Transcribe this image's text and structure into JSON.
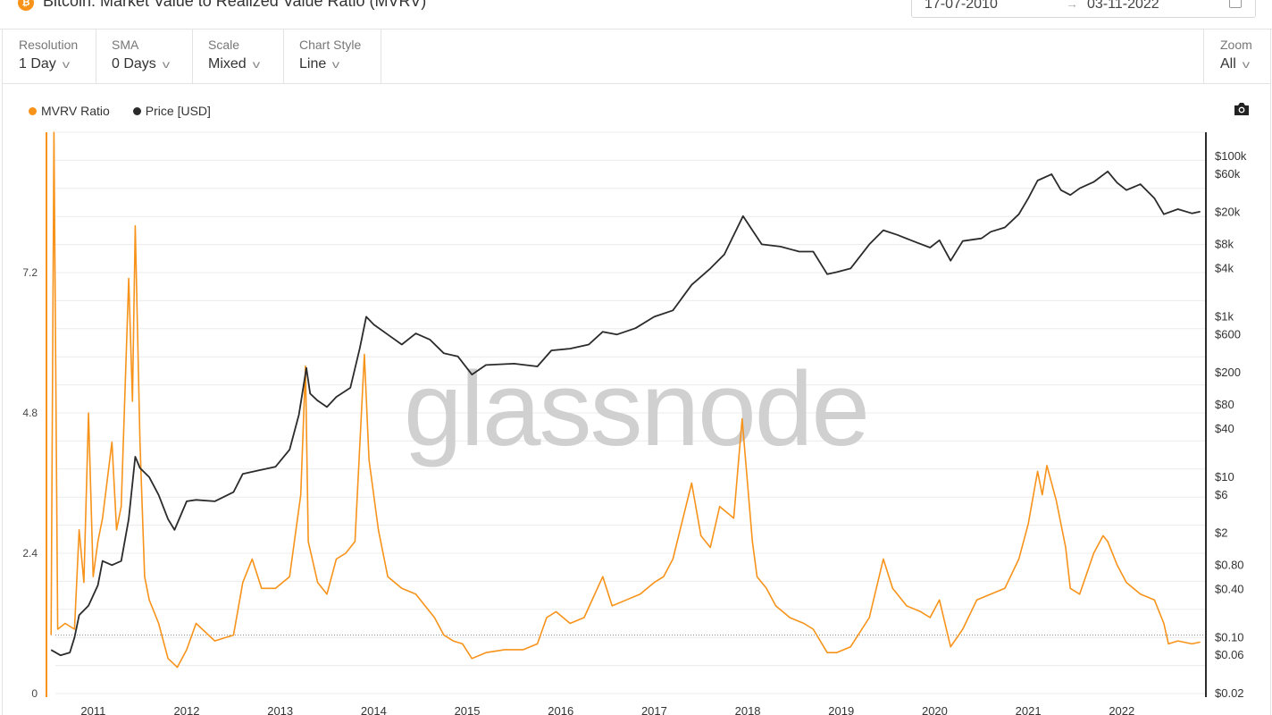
{
  "header": {
    "icon_symbol": "₿",
    "title": "Bitcoin: Market Value to Realized Value Ratio (MVRV)",
    "date_start": "17-07-2010",
    "date_end": "03-11-2022"
  },
  "toolbar": {
    "resolution_label": "Resolution",
    "resolution_value": "1 Day",
    "sma_label": "SMA",
    "sma_value": "0 Days",
    "scale_label": "Scale",
    "scale_value": "Mixed",
    "style_label": "Chart Style",
    "style_value": "Line",
    "zoom_label": "Zoom",
    "zoom_value": "All"
  },
  "legend": {
    "mvrv": "MVRV Ratio",
    "price": "Price [USD]"
  },
  "watermark": "glassnode",
  "colors": {
    "mvrv": "#f7931a",
    "price": "#2b2b2b",
    "grid": "#ececec",
    "watermark": "#d0d0d0"
  },
  "chart_data": {
    "type": "line",
    "x_ticks": [
      "2011",
      "2012",
      "2013",
      "2014",
      "2015",
      "2016",
      "2017",
      "2018",
      "2019",
      "2020",
      "2021",
      "2022"
    ],
    "left_axis": {
      "scale": "linear",
      "ticks": [
        0,
        2.4,
        4.8,
        7.2
      ],
      "range": [
        0,
        9.6
      ]
    },
    "right_axis": {
      "scale": "log",
      "ticks": [
        "$0.02",
        "$0.06",
        "$0.10",
        "$0.40",
        "$0.80",
        "$2",
        "$6",
        "$10",
        "$40",
        "$80",
        "$200",
        "$600",
        "$1k",
        "$4k",
        "$8k",
        "$20k",
        "$60k",
        "$100k"
      ],
      "values": [
        0.02,
        0.06,
        0.1,
        0.4,
        0.8,
        2,
        6,
        10,
        40,
        80,
        200,
        600,
        1000,
        4000,
        8000,
        20000,
        60000,
        100000
      ],
      "range": [
        0.02,
        200000
      ]
    },
    "reference_line": {
      "axis": "left",
      "value": 1
    },
    "series": [
      {
        "name": "MVRV Ratio",
        "axis": "left",
        "points": [
          [
            2010.55,
            1.0
          ],
          [
            2010.58,
            9.6
          ],
          [
            2010.62,
            1.1
          ],
          [
            2010.7,
            1.2
          ],
          [
            2010.8,
            1.1
          ],
          [
            2010.85,
            2.8
          ],
          [
            2010.9,
            1.9
          ],
          [
            2010.95,
            4.8
          ],
          [
            2011.0,
            2.0
          ],
          [
            2011.05,
            2.6
          ],
          [
            2011.1,
            3.0
          ],
          [
            2011.2,
            4.3
          ],
          [
            2011.25,
            2.8
          ],
          [
            2011.3,
            3.2
          ],
          [
            2011.38,
            7.1
          ],
          [
            2011.42,
            5.0
          ],
          [
            2011.45,
            8.0
          ],
          [
            2011.5,
            4.3
          ],
          [
            2011.55,
            2.0
          ],
          [
            2011.6,
            1.6
          ],
          [
            2011.7,
            1.2
          ],
          [
            2011.8,
            0.6
          ],
          [
            2011.9,
            0.45
          ],
          [
            2012.0,
            0.75
          ],
          [
            2012.1,
            1.2
          ],
          [
            2012.3,
            0.9
          ],
          [
            2012.5,
            1.0
          ],
          [
            2012.6,
            1.9
          ],
          [
            2012.7,
            2.3
          ],
          [
            2012.8,
            1.8
          ],
          [
            2012.95,
            1.8
          ],
          [
            2013.1,
            2.0
          ],
          [
            2013.22,
            3.4
          ],
          [
            2013.27,
            5.6
          ],
          [
            2013.3,
            2.6
          ],
          [
            2013.4,
            1.9
          ],
          [
            2013.5,
            1.7
          ],
          [
            2013.6,
            2.3
          ],
          [
            2013.7,
            2.4
          ],
          [
            2013.8,
            2.6
          ],
          [
            2013.9,
            5.8
          ],
          [
            2013.95,
            4.0
          ],
          [
            2014.05,
            2.8
          ],
          [
            2014.15,
            2.0
          ],
          [
            2014.3,
            1.8
          ],
          [
            2014.45,
            1.7
          ],
          [
            2014.55,
            1.5
          ],
          [
            2014.65,
            1.3
          ],
          [
            2014.75,
            1.0
          ],
          [
            2014.85,
            0.9
          ],
          [
            2014.95,
            0.85
          ],
          [
            2015.05,
            0.6
          ],
          [
            2015.2,
            0.7
          ],
          [
            2015.4,
            0.75
          ],
          [
            2015.6,
            0.75
          ],
          [
            2015.75,
            0.85
          ],
          [
            2015.85,
            1.3
          ],
          [
            2015.95,
            1.4
          ],
          [
            2016.1,
            1.2
          ],
          [
            2016.25,
            1.3
          ],
          [
            2016.45,
            2.0
          ],
          [
            2016.55,
            1.5
          ],
          [
            2016.7,
            1.6
          ],
          [
            2016.85,
            1.7
          ],
          [
            2017.0,
            1.9
          ],
          [
            2017.1,
            2.0
          ],
          [
            2017.2,
            2.3
          ],
          [
            2017.4,
            3.6
          ],
          [
            2017.5,
            2.7
          ],
          [
            2017.6,
            2.5
          ],
          [
            2017.7,
            3.2
          ],
          [
            2017.85,
            3.0
          ],
          [
            2017.94,
            4.7
          ],
          [
            2018.05,
            2.6
          ],
          [
            2018.1,
            2.0
          ],
          [
            2018.2,
            1.8
          ],
          [
            2018.3,
            1.5
          ],
          [
            2018.45,
            1.3
          ],
          [
            2018.6,
            1.2
          ],
          [
            2018.7,
            1.1
          ],
          [
            2018.85,
            0.7
          ],
          [
            2018.95,
            0.7
          ],
          [
            2019.1,
            0.8
          ],
          [
            2019.3,
            1.3
          ],
          [
            2019.45,
            2.3
          ],
          [
            2019.55,
            1.8
          ],
          [
            2019.7,
            1.5
          ],
          [
            2019.85,
            1.4
          ],
          [
            2019.95,
            1.3
          ],
          [
            2020.05,
            1.6
          ],
          [
            2020.17,
            0.8
          ],
          [
            2020.3,
            1.1
          ],
          [
            2020.45,
            1.6
          ],
          [
            2020.6,
            1.7
          ],
          [
            2020.75,
            1.8
          ],
          [
            2020.9,
            2.3
          ],
          [
            2021.0,
            2.9
          ],
          [
            2021.1,
            3.8
          ],
          [
            2021.15,
            3.4
          ],
          [
            2021.2,
            3.9
          ],
          [
            2021.3,
            3.3
          ],
          [
            2021.4,
            2.5
          ],
          [
            2021.45,
            1.8
          ],
          [
            2021.55,
            1.7
          ],
          [
            2021.7,
            2.4
          ],
          [
            2021.8,
            2.7
          ],
          [
            2021.85,
            2.6
          ],
          [
            2021.95,
            2.2
          ],
          [
            2022.05,
            1.9
          ],
          [
            2022.2,
            1.7
          ],
          [
            2022.35,
            1.6
          ],
          [
            2022.45,
            1.2
          ],
          [
            2022.5,
            0.85
          ],
          [
            2022.6,
            0.9
          ],
          [
            2022.75,
            0.85
          ],
          [
            2022.84,
            0.88
          ]
        ]
      },
      {
        "name": "Price [USD]",
        "axis": "right",
        "points": [
          [
            2010.55,
            0.07
          ],
          [
            2010.65,
            0.06
          ],
          [
            2010.75,
            0.065
          ],
          [
            2010.8,
            0.1
          ],
          [
            2010.85,
            0.19
          ],
          [
            2010.95,
            0.25
          ],
          [
            2011.05,
            0.45
          ],
          [
            2011.1,
            0.9
          ],
          [
            2011.2,
            0.8
          ],
          [
            2011.3,
            0.9
          ],
          [
            2011.38,
            3
          ],
          [
            2011.45,
            18
          ],
          [
            2011.5,
            13
          ],
          [
            2011.6,
            10
          ],
          [
            2011.7,
            6
          ],
          [
            2011.8,
            3
          ],
          [
            2011.87,
            2.2
          ],
          [
            2012.0,
            5
          ],
          [
            2012.1,
            5.2
          ],
          [
            2012.3,
            5
          ],
          [
            2012.5,
            6.5
          ],
          [
            2012.6,
            11
          ],
          [
            2012.75,
            12
          ],
          [
            2012.95,
            13.5
          ],
          [
            2013.1,
            22
          ],
          [
            2013.2,
            60
          ],
          [
            2013.28,
            230
          ],
          [
            2013.32,
            110
          ],
          [
            2013.4,
            90
          ],
          [
            2013.5,
            75
          ],
          [
            2013.6,
            100
          ],
          [
            2013.75,
            130
          ],
          [
            2013.85,
            400
          ],
          [
            2013.92,
            1000
          ],
          [
            2014.0,
            800
          ],
          [
            2014.15,
            600
          ],
          [
            2014.3,
            450
          ],
          [
            2014.45,
            620
          ],
          [
            2014.6,
            520
          ],
          [
            2014.75,
            350
          ],
          [
            2014.9,
            320
          ],
          [
            2015.05,
            190
          ],
          [
            2015.2,
            250
          ],
          [
            2015.5,
            260
          ],
          [
            2015.75,
            240
          ],
          [
            2015.9,
            380
          ],
          [
            2016.1,
            400
          ],
          [
            2016.3,
            450
          ],
          [
            2016.45,
            650
          ],
          [
            2016.6,
            600
          ],
          [
            2016.8,
            720
          ],
          [
            2017.0,
            1000
          ],
          [
            2017.2,
            1200
          ],
          [
            2017.4,
            2500
          ],
          [
            2017.6,
            4000
          ],
          [
            2017.75,
            6000
          ],
          [
            2017.95,
            18000
          ],
          [
            2018.05,
            12000
          ],
          [
            2018.15,
            8000
          ],
          [
            2018.35,
            7500
          ],
          [
            2018.55,
            6500
          ],
          [
            2018.7,
            6500
          ],
          [
            2018.85,
            3400
          ],
          [
            2018.95,
            3600
          ],
          [
            2019.1,
            4000
          ],
          [
            2019.3,
            8000
          ],
          [
            2019.45,
            12000
          ],
          [
            2019.6,
            10500
          ],
          [
            2019.8,
            8500
          ],
          [
            2019.95,
            7300
          ],
          [
            2020.05,
            9000
          ],
          [
            2020.17,
            5000
          ],
          [
            2020.3,
            8800
          ],
          [
            2020.5,
            9500
          ],
          [
            2020.6,
            11500
          ],
          [
            2020.75,
            13000
          ],
          [
            2020.9,
            19000
          ],
          [
            2021.0,
            30000
          ],
          [
            2021.1,
            50000
          ],
          [
            2021.25,
            60000
          ],
          [
            2021.35,
            38000
          ],
          [
            2021.45,
            33000
          ],
          [
            2021.55,
            40000
          ],
          [
            2021.7,
            48000
          ],
          [
            2021.85,
            65000
          ],
          [
            2021.95,
            47000
          ],
          [
            2022.05,
            38000
          ],
          [
            2022.2,
            45000
          ],
          [
            2022.35,
            30000
          ],
          [
            2022.45,
            19000
          ],
          [
            2022.6,
            22000
          ],
          [
            2022.75,
            19500
          ],
          [
            2022.84,
            20500
          ]
        ]
      }
    ]
  }
}
